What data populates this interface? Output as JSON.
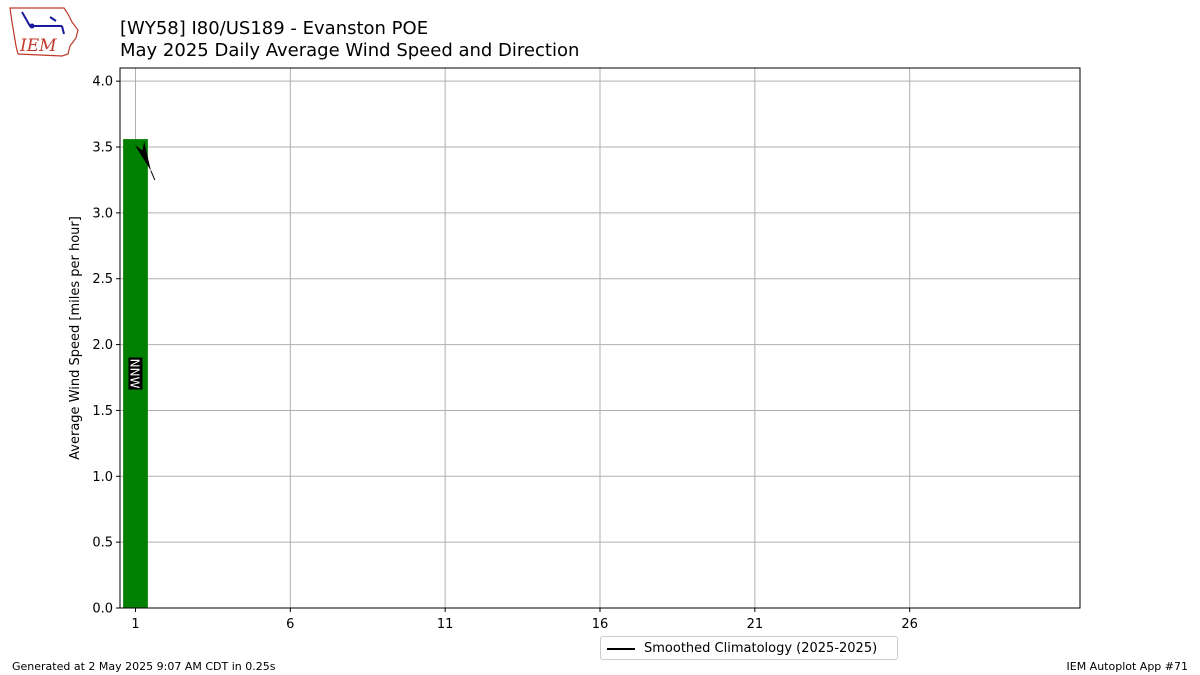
{
  "header": {
    "title_line1": "[WY58] I80/US189 - Evanston POE",
    "title_line2": "May 2025 Daily Average Wind Speed and Direction"
  },
  "logo": {
    "text": "IEM",
    "color": "#c0392b",
    "icon": "iem-logo-iowa-outline"
  },
  "chart_data": {
    "type": "bar",
    "title": "[WY58] I80/US189 - Evanston POE\nMay 2025 Daily Average Wind Speed and Direction",
    "xlabel": "",
    "ylabel": "Average Wind Speed [miles per hour]",
    "xlim": [
      0.5,
      31.5
    ],
    "ylim": [
      0,
      4.1
    ],
    "xticks": [
      1,
      6,
      11,
      16,
      21,
      26
    ],
    "xtick_labels": [
      "1",
      "6",
      "11",
      "16",
      "21",
      "26"
    ],
    "yticks": [
      0.0,
      0.5,
      1.0,
      1.5,
      2.0,
      2.5,
      3.0,
      3.5,
      4.0
    ],
    "ytick_labels": [
      "0.0",
      "0.5",
      "1.0",
      "1.5",
      "2.0",
      "2.5",
      "3.0",
      "3.5",
      "4.0"
    ],
    "grid": true,
    "bar_color": "#008000",
    "series": [
      {
        "x": [
          1
        ],
        "values": [
          3.56
        ],
        "direction_labels": [
          "NNW"
        ],
        "direction_degrees": [
          337.5
        ]
      }
    ],
    "climatology": {
      "name": "Smoothed Climatology (2025-2025)",
      "color": "#000000",
      "x": [],
      "values": []
    },
    "legend": {
      "position": "bottom-center",
      "entries": [
        "Smoothed Climatology (2025-2025)"
      ]
    }
  },
  "footer": {
    "generated": "Generated at 2 May 2025 9:07 AM CDT in 0.25s",
    "app": "IEM Autoplot App #71"
  }
}
